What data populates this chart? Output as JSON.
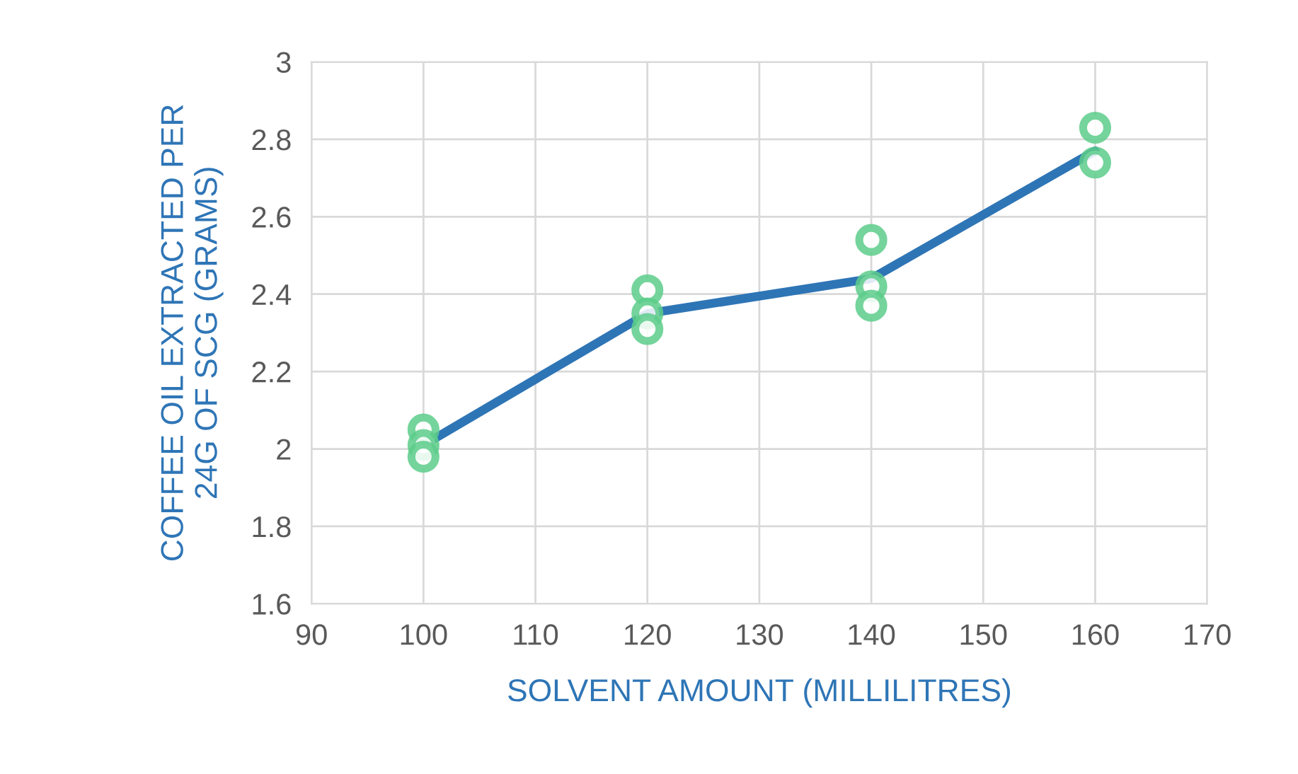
{
  "chart_data": {
    "type": "scatter",
    "xlabel": "SOLVENT AMOUNT (MILLILITRES)",
    "ylabel": "COFFEE OIL EXTRACTED PER\n24G OF SCG (GRAMS)",
    "xlim": [
      90,
      170
    ],
    "xticks": [
      90,
      100,
      110,
      120,
      130,
      140,
      150,
      160,
      170
    ],
    "ylim": [
      1.6,
      3
    ],
    "yticks": [
      1.6,
      1.8,
      2,
      2.2,
      2.4,
      2.6,
      2.8,
      3
    ],
    "grid": true,
    "legend": false,
    "series": [
      {
        "type": "line",
        "color": "#2e75b6",
        "marker": "none",
        "line_style": "solid",
        "x": [
          100,
          120,
          140,
          160
        ],
        "values": [
          2.01,
          2.35,
          2.44,
          2.77
        ]
      },
      {
        "color": "#5ccc8a",
        "marker": "circle",
        "x": [
          100,
          100,
          100,
          120,
          120,
          120,
          140,
          140,
          140,
          160,
          160
        ],
        "values": [
          2.05,
          2.01,
          1.98,
          2.41,
          2.35,
          2.31,
          2.54,
          2.42,
          2.37,
          2.83,
          2.74
        ]
      }
    ]
  }
}
